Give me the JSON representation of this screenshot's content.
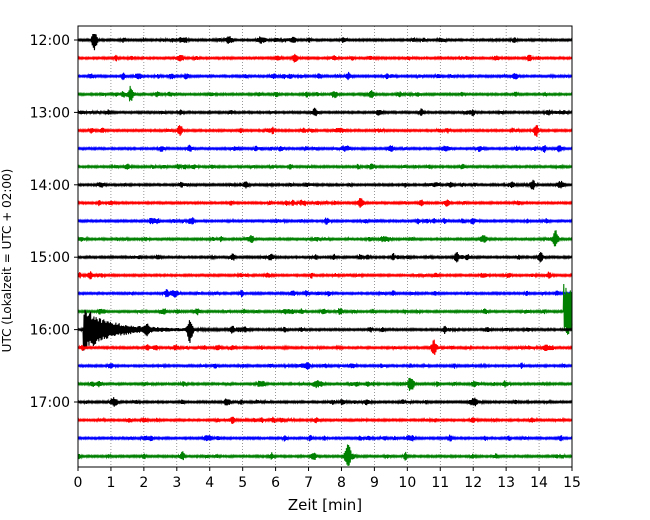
{
  "chart_data": {
    "type": "line",
    "subtype": "helicorder",
    "xlabel": "Zeit  [min]",
    "ylabel": "UTC (Lokalzeit = UTC + 02:00)",
    "xlim": [
      0,
      15
    ],
    "x_ticks": [
      "0",
      "1",
      "2",
      "3",
      "4",
      "5",
      "6",
      "7",
      "8",
      "9",
      "10",
      "11",
      "12",
      "13",
      "14",
      "15"
    ],
    "y_tick_labels": [
      "12:00",
      "13:00",
      "14:00",
      "15:00",
      "16:00",
      "17:00"
    ],
    "row_minutes": 15,
    "start_time": "12:00",
    "rows": 24,
    "colors": [
      "#000000",
      "#ff0000",
      "#0000ff",
      "#008000"
    ],
    "grid": "vertical dotted at each minute",
    "traces": [
      {
        "time": "12:00",
        "color": "#000000",
        "events": [
          {
            "t": 0.5,
            "amp": 1.6
          }
        ]
      },
      {
        "time": "12:15",
        "color": "#ff0000",
        "events": [
          {
            "t": 6.6,
            "amp": 0.8
          }
        ]
      },
      {
        "time": "12:30",
        "color": "#0000ff",
        "events": [
          {
            "t": 8.2,
            "amp": 0.6
          }
        ]
      },
      {
        "time": "12:45",
        "color": "#008000",
        "events": [
          {
            "t": 1.6,
            "amp": 1.3
          }
        ]
      },
      {
        "time": "13:00",
        "color": "#000000",
        "events": [
          {
            "t": 7.2,
            "amp": 0.7
          }
        ]
      },
      {
        "time": "13:15",
        "color": "#ff0000",
        "events": [
          {
            "t": 3.1,
            "amp": 0.9
          }
        ]
      },
      {
        "time": "13:30",
        "color": "#0000ff",
        "events": [
          {
            "t": 9.5,
            "amp": 0.5
          }
        ]
      },
      {
        "time": "13:45",
        "color": "#008000",
        "events": [
          {
            "t": 1.5,
            "amp": 0.5
          }
        ]
      },
      {
        "time": "14:00",
        "color": "#000000",
        "events": [
          {
            "t": 5.1,
            "amp": 0.5
          }
        ]
      },
      {
        "time": "14:15",
        "color": "#ff0000",
        "events": [
          {
            "t": 8.6,
            "amp": 0.6
          }
        ]
      },
      {
        "time": "14:30",
        "color": "#0000ff",
        "events": [
          {
            "t": 2.3,
            "amp": 0.4
          }
        ]
      },
      {
        "time": "14:45",
        "color": "#008000",
        "events": [
          {
            "t": 14.5,
            "amp": 1.4
          }
        ]
      },
      {
        "time": "15:00",
        "color": "#000000",
        "events": [
          {
            "t": 11.5,
            "amp": 0.8
          }
        ]
      },
      {
        "time": "15:15",
        "color": "#ff0000",
        "events": [
          {
            "t": 14.3,
            "amp": 0.5
          }
        ]
      },
      {
        "time": "15:30",
        "color": "#0000ff",
        "events": [
          {
            "t": 2.7,
            "amp": 0.6
          }
        ]
      },
      {
        "time": "15:45",
        "color": "#008000",
        "events": [
          {
            "t": 14.8,
            "amp": 4.5
          }
        ]
      },
      {
        "time": "16:00",
        "color": "#000000",
        "events": [
          {
            "t": 0.2,
            "amp": 3.0
          },
          {
            "t": 3.4,
            "amp": 2.0
          }
        ]
      },
      {
        "time": "16:15",
        "color": "#ff0000",
        "events": [
          {
            "t": 10.8,
            "amp": 1.2
          }
        ]
      },
      {
        "time": "16:30",
        "color": "#0000ff",
        "events": [
          {
            "t": 1.0,
            "amp": 0.5
          }
        ]
      },
      {
        "time": "16:45",
        "color": "#008000",
        "events": [
          {
            "t": 10.1,
            "amp": 1.3
          }
        ]
      },
      {
        "time": "17:00",
        "color": "#000000",
        "events": [
          {
            "t": 4.5,
            "amp": 0.5
          }
        ]
      },
      {
        "time": "17:15",
        "color": "#ff0000",
        "events": [
          {
            "t": 12.0,
            "amp": 0.4
          }
        ]
      },
      {
        "time": "17:30",
        "color": "#0000ff",
        "events": [
          {
            "t": 11.3,
            "amp": 0.5
          }
        ]
      },
      {
        "time": "17:45",
        "color": "#008000",
        "events": [
          {
            "t": 8.2,
            "amp": 2.4
          }
        ]
      }
    ]
  }
}
